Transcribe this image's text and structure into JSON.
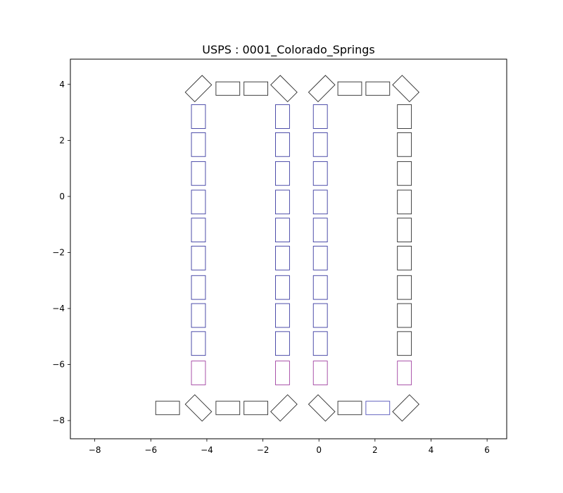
{
  "chart_data": {
    "type": "scatter",
    "title": "USPS : 0001_Colorado_Springs",
    "xlabel": "",
    "ylabel": "",
    "xlim": [
      -8.87,
      6.7
    ],
    "ylim": [
      -8.65,
      4.9
    ],
    "xticks": [
      -8,
      -6,
      -4,
      -2,
      0,
      2,
      4,
      6
    ],
    "yticks": [
      -8,
      -6,
      -4,
      -2,
      0,
      2,
      4
    ],
    "grid": false,
    "colors": {
      "dark": "#2b2b2b",
      "blue": "#3a3aa0",
      "purple": "#a040a0",
      "solid_blue": "#5050b8"
    },
    "shapes": [
      {
        "cx": -4.3,
        "cy": 3.85,
        "w": 0.85,
        "h": 0.48,
        "angle": 45,
        "color": "dark"
      },
      {
        "cx": -3.25,
        "cy": 3.85,
        "w": 0.85,
        "h": 0.48,
        "angle": 0,
        "color": "dark"
      },
      {
        "cx": -2.25,
        "cy": 3.85,
        "w": 0.85,
        "h": 0.48,
        "angle": 0,
        "color": "dark"
      },
      {
        "cx": -1.25,
        "cy": 3.85,
        "w": 0.85,
        "h": 0.48,
        "angle": -45,
        "color": "dark"
      },
      {
        "cx": 0.1,
        "cy": 3.85,
        "w": 0.85,
        "h": 0.48,
        "angle": 45,
        "color": "dark"
      },
      {
        "cx": 1.1,
        "cy": 3.85,
        "w": 0.85,
        "h": 0.48,
        "angle": 0,
        "color": "dark"
      },
      {
        "cx": 2.1,
        "cy": 3.85,
        "w": 0.85,
        "h": 0.48,
        "angle": 0,
        "color": "dark"
      },
      {
        "cx": 3.1,
        "cy": 3.85,
        "w": 0.85,
        "h": 0.48,
        "angle": -45,
        "color": "dark"
      },
      {
        "cx": -5.4,
        "cy": -7.55,
        "w": 0.85,
        "h": 0.48,
        "angle": 0,
        "color": "dark"
      },
      {
        "cx": -4.3,
        "cy": -7.55,
        "w": 0.85,
        "h": 0.48,
        "angle": -45,
        "color": "dark"
      },
      {
        "cx": -3.25,
        "cy": -7.55,
        "w": 0.85,
        "h": 0.48,
        "angle": 0,
        "color": "dark"
      },
      {
        "cx": -2.25,
        "cy": -7.55,
        "w": 0.85,
        "h": 0.48,
        "angle": 0,
        "color": "dark"
      },
      {
        "cx": -1.25,
        "cy": -7.55,
        "w": 0.85,
        "h": 0.48,
        "angle": 45,
        "color": "dark"
      },
      {
        "cx": 0.1,
        "cy": -7.55,
        "w": 0.85,
        "h": 0.48,
        "angle": -45,
        "color": "dark"
      },
      {
        "cx": 1.1,
        "cy": -7.55,
        "w": 0.85,
        "h": 0.48,
        "angle": 0,
        "color": "dark"
      },
      {
        "cx": 2.1,
        "cy": -7.55,
        "w": 0.85,
        "h": 0.48,
        "angle": 0,
        "color": "solid_blue"
      },
      {
        "cx": 3.1,
        "cy": -7.55,
        "w": 0.85,
        "h": 0.48,
        "angle": 45,
        "color": "dark"
      }
    ],
    "columns": [
      {
        "cx": -4.3,
        "color": "blue"
      },
      {
        "cx": -1.3,
        "color": "blue"
      },
      {
        "cx": 0.05,
        "color": "blue"
      },
      {
        "cx": 3.05,
        "color": "dark"
      }
    ],
    "column_rows_cy": [
      2.85,
      1.85,
      0.82,
      -0.2,
      -1.2,
      -2.2,
      -3.25,
      -4.25,
      -5.25
    ],
    "column_last_cy": -6.3,
    "column_last_color": "purple",
    "column_box": {
      "w": 0.5,
      "h": 0.85
    }
  }
}
